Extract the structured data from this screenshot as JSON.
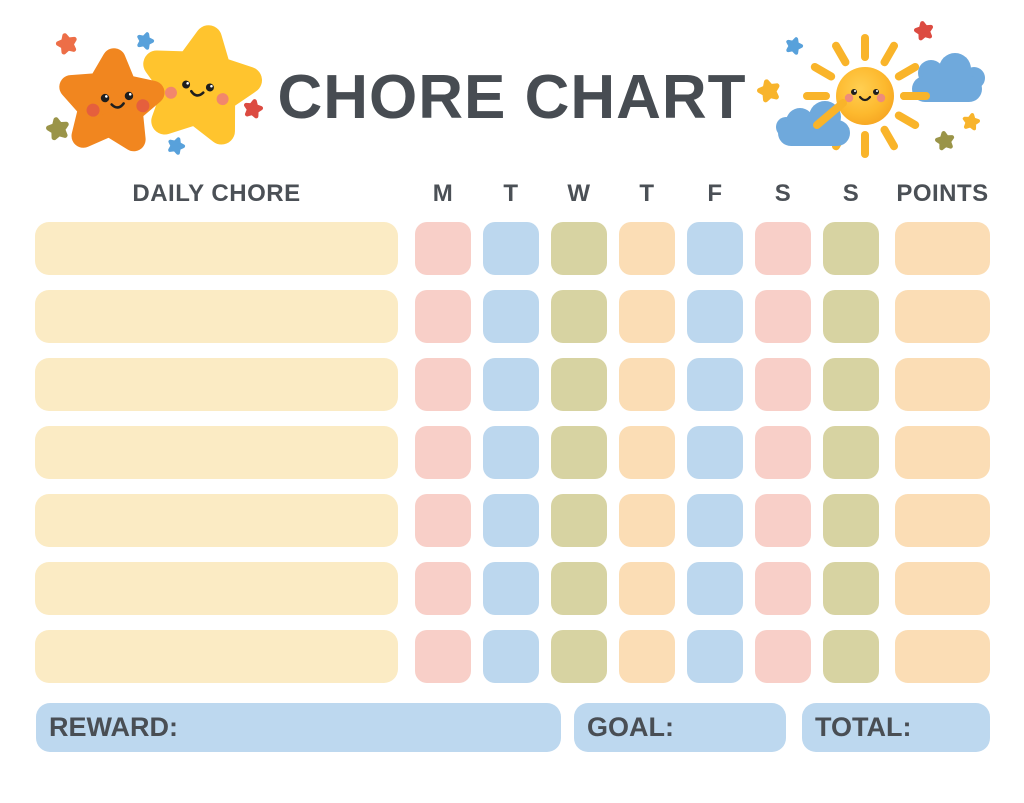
{
  "page": {
    "title": "CHORE CHART"
  },
  "table": {
    "chore_header": "DAILY CHORE",
    "day_headers": [
      "M",
      "T",
      "W",
      "T",
      "F",
      "S",
      "S"
    ],
    "points_header": "POINTS",
    "row_count": 7,
    "day_cell_pattern": [
      "pink",
      "blue",
      "olive",
      "peach",
      "blue",
      "pink",
      "olive"
    ],
    "points_cell_color": "peach",
    "chore_cell_color": "cream"
  },
  "footer": {
    "reward_label": "REWARD:",
    "goal_label": "GOAL:",
    "total_label": "TOTAL:"
  },
  "colors": {
    "cream": "#FBEBC4",
    "pink": "#F8CFC8",
    "blue": "#BCD7EE",
    "olive": "#D7D3A2",
    "peach": "#FBDDB5",
    "footer_blue": "#BDD8EF",
    "text": "#4A4F55",
    "star_orange": "#F1861F",
    "star_yellow": "#FFC42E",
    "sun_yellow": "#F9B42A",
    "cloud_blue": "#6FA9DC"
  },
  "illustrations": {
    "left": "stars-illustration",
    "right": "sun-and-clouds-illustration"
  }
}
